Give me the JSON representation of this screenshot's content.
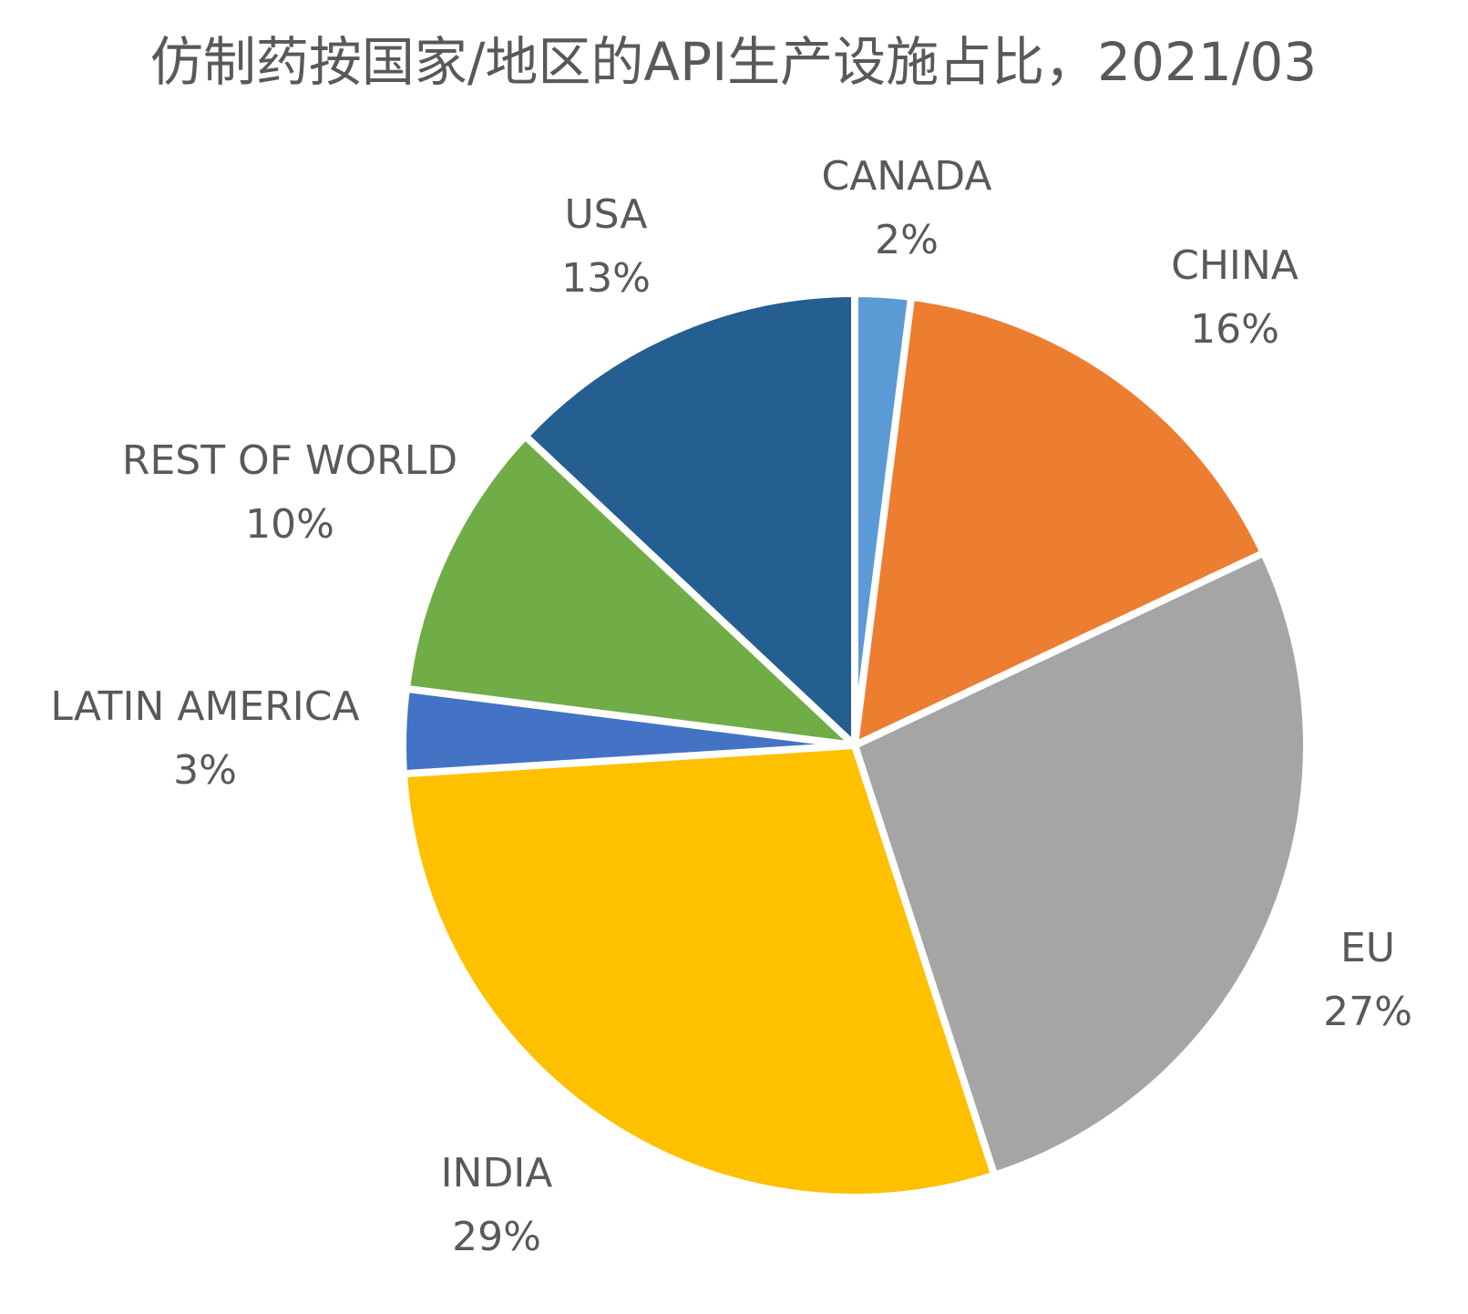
{
  "chart_data": {
    "type": "pie",
    "title": "仿制药按国家/地区的API生产设施占比，2021/03",
    "start": "12 o'clock, clockwise",
    "slices": [
      {
        "label": "CANADA",
        "value": 2,
        "value_label": "2%",
        "color": "#5B9BD5"
      },
      {
        "label": "CHINA",
        "value": 16,
        "value_label": "16%",
        "color": "#ED7D31"
      },
      {
        "label": "EU",
        "value": 27,
        "value_label": "27%",
        "color": "#A5A5A5"
      },
      {
        "label": "INDIA",
        "value": 29,
        "value_label": "29%",
        "color": "#FFC000"
      },
      {
        "label": "LATIN AMERICA",
        "value": 3,
        "value_label": "3%",
        "color": "#4472C4"
      },
      {
        "label": "REST OF WORLD",
        "value": 10,
        "value_label": "10%",
        "color": "#70AD47"
      },
      {
        "label": "USA",
        "value": 13,
        "value_label": "13%",
        "color": "#255E91"
      }
    ]
  }
}
